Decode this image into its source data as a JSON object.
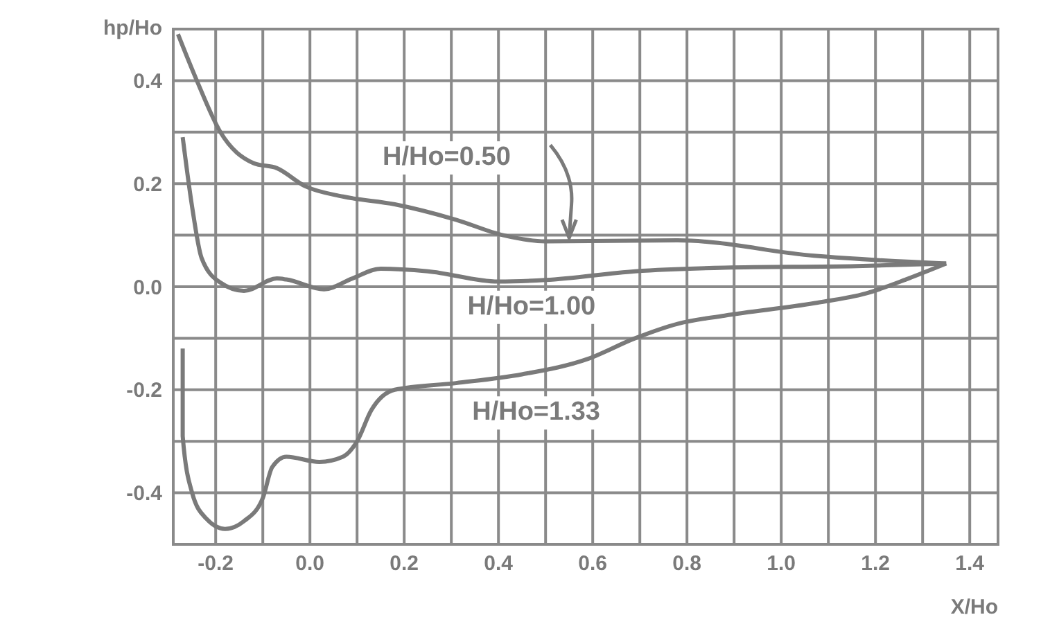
{
  "chart_data": {
    "type": "line",
    "xlabel": "X/Ho",
    "ylabel": "hp/Ho",
    "xlim": [
      -0.29,
      1.46
    ],
    "ylim": [
      -0.5,
      0.5
    ],
    "xticks": [
      -0.2,
      {
        "value": -0.1,
        "label": null
      },
      {
        "value": 0,
        "label": "0.0"
      },
      {
        "value": 0.1,
        "label": null
      },
      0.2,
      {
        "value": 0.3,
        "label": null
      },
      0.4,
      {
        "value": 0.5,
        "label": null
      },
      0.6,
      {
        "value": 0.7,
        "label": null
      },
      0.8,
      {
        "value": 0.9,
        "label": null
      },
      {
        "value": 1,
        "label": "1.0"
      },
      {
        "value": 1.1,
        "label": null
      },
      1.2,
      {
        "value": 1.3,
        "label": null
      },
      1.4
    ],
    "yticks": [
      {
        "value": -0.5,
        "label": null
      },
      -0.4,
      {
        "value": -0.3,
        "label": null
      },
      -0.2,
      {
        "value": -0.1,
        "label": null
      },
      {
        "value": 0,
        "label": "0.0"
      },
      {
        "value": 0.1,
        "label": null
      },
      0.2,
      {
        "value": 0.3,
        "label": null
      },
      0.4,
      {
        "value": 0.5,
        "label": null
      }
    ],
    "grid": true,
    "marker": "none",
    "line_style": "solid",
    "series": [
      {
        "name": "H/Ho=0.50",
        "color": "#7a7a7a",
        "x": [
          -0.28,
          -0.24,
          -0.19,
          -0.12,
          -0.07,
          -0.01,
          0.07,
          0.18,
          0.31,
          0.41,
          0.5,
          0.78,
          1.07,
          1.35
        ],
        "values": [
          0.49,
          0.4,
          0.3,
          0.24,
          0.23,
          0.195,
          0.175,
          0.16,
          0.13,
          0.1,
          0.088,
          0.09,
          0.06,
          0.045
        ]
      },
      {
        "name": "H/Ho=1.00",
        "color": "#7a7a7a",
        "x": [
          -0.27,
          -0.25,
          -0.23,
          -0.19,
          -0.14,
          -0.07,
          -0.05,
          0.03,
          0.09,
          0.15,
          0.25,
          0.4,
          0.5,
          0.69,
          0.88,
          1.16,
          1.35
        ],
        "values": [
          0.29,
          0.155,
          0.056,
          0.008,
          -0.008,
          0.016,
          0.014,
          -0.005,
          0.016,
          0.035,
          0.03,
          0.01,
          0.013,
          0.03,
          0.037,
          0.04,
          0.045
        ]
      },
      {
        "name": "H/Ho=1.33",
        "color": "#7a7a7a",
        "x": [
          -0.27,
          -0.27,
          -0.25,
          -0.22,
          -0.18,
          -0.14,
          -0.1,
          -0.08,
          -0.05,
          0.02,
          0.07,
          0.1,
          0.13,
          0.18,
          0.31,
          0.45,
          0.59,
          0.69,
          0.78,
          0.88,
          1.07,
          1.18,
          1.27,
          1.35
        ],
        "values": [
          -0.12,
          -0.29,
          -0.4,
          -0.45,
          -0.47,
          -0.455,
          -0.41,
          -0.35,
          -0.33,
          -0.34,
          -0.33,
          -0.3,
          -0.24,
          -0.2,
          -0.187,
          -0.17,
          -0.14,
          -0.1,
          -0.072,
          -0.056,
          -0.032,
          -0.013,
          0.016,
          0.045
        ]
      }
    ]
  }
}
